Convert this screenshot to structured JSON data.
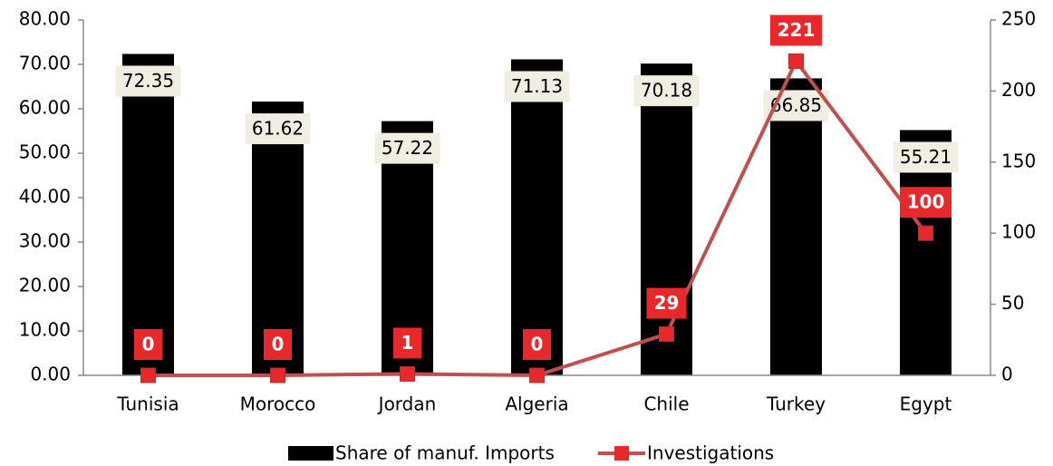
{
  "chart_data": {
    "type": "bar",
    "categories": [
      "Tunisia",
      "Morocco",
      "Jordan",
      "Algeria",
      "Chile",
      "Turkey",
      "Egypt"
    ],
    "series": [
      {
        "name": "Share of manuf. Imports",
        "color": "#000000",
        "values": [
          72.35,
          61.62,
          57.22,
          71.13,
          70.18,
          66.85,
          55.21
        ]
      },
      {
        "name": "Investigations",
        "color": "#c0504d",
        "marker_color": "#e8282b",
        "axis": "y2",
        "type": "line",
        "values": [
          0,
          0,
          1,
          0,
          29,
          221,
          100
        ]
      }
    ],
    "ylim": [
      0,
      80
    ],
    "yticks": [
      {
        "value": 0,
        "label": "0.00"
      },
      {
        "value": 10,
        "label": "10.00"
      },
      {
        "value": 20,
        "label": "20.00"
      },
      {
        "value": 30,
        "label": "30.00"
      },
      {
        "value": 40,
        "label": "40.00"
      },
      {
        "value": 50,
        "label": "50.00"
      },
      {
        "value": 60,
        "label": "60.00"
      },
      {
        "value": 70,
        "label": "70.00"
      },
      {
        "value": 80,
        "label": "80.00"
      }
    ],
    "y2lim": [
      0,
      250
    ],
    "y2ticks": [
      0,
      50,
      100,
      150,
      200,
      250
    ],
    "grid": false,
    "legend": "bottom"
  }
}
